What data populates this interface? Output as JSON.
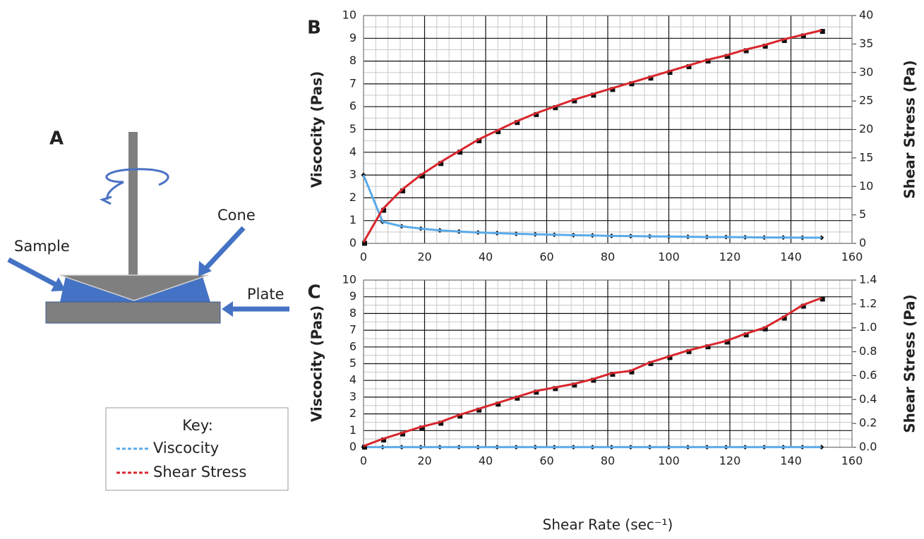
{
  "diagram": {
    "label": "A",
    "cone": "Cone",
    "sample": "Sample",
    "plate": "Plate"
  },
  "key": {
    "title": "Key:"
  },
  "chart_data": [
    {
      "type": "line",
      "label": "B",
      "ylabel": "Viscocity (Pas)",
      "y2label": "Shear Stress (Pa)",
      "x": [
        0,
        6.25,
        12.5,
        18.75,
        25,
        31.25,
        37.5,
        43.75,
        50,
        56.25,
        62.5,
        68.75,
        75,
        81.25,
        87.5,
        93.75,
        100,
        106.25,
        112.5,
        118.75,
        125,
        131.25,
        137.5,
        143.75,
        150
      ],
      "series": [
        {
          "name": "Viscocity",
          "color": "#5aaae8",
          "axis": "y",
          "values": [
            3.0,
            0.95,
            0.75,
            0.65,
            0.57,
            0.52,
            0.48,
            0.45,
            0.42,
            0.4,
            0.38,
            0.36,
            0.35,
            0.33,
            0.32,
            0.31,
            0.3,
            0.29,
            0.28,
            0.28,
            0.27,
            0.26,
            0.26,
            0.25,
            0.25
          ]
        },
        {
          "name": "Shear Stress",
          "color": "#d9262c",
          "axis": "y2",
          "values": [
            0.2,
            6,
            9.4,
            12,
            14.2,
            16.2,
            18.2,
            19.8,
            21.4,
            22.8,
            24,
            25.2,
            26.2,
            27.2,
            28.2,
            29.2,
            30.2,
            31.2,
            32.2,
            33,
            34,
            34.8,
            35.8,
            36.6,
            37.4
          ]
        }
      ],
      "marker_color": "#111111",
      "xlim": [
        0,
        160
      ],
      "xticks": [
        0,
        20,
        40,
        60,
        80,
        100,
        120,
        140,
        160
      ],
      "ylim": [
        0,
        10
      ],
      "yticks": [
        0,
        1,
        2,
        3,
        4,
        5,
        6,
        7,
        8,
        9,
        10
      ],
      "y2lim": [
        0,
        40
      ],
      "y2ticks": [
        0,
        5,
        10,
        15,
        20,
        25,
        30,
        35,
        40
      ],
      "grid": true,
      "minor_grid": true
    },
    {
      "type": "line",
      "label": "C",
      "ylabel": "Viscocity (Pas)",
      "y2label": "Shear Stress (Pa)",
      "xlabel": "Shear Rate (sec⁻¹)",
      "x": [
        0,
        6.25,
        12.5,
        18.75,
        25,
        31.25,
        37.5,
        43.75,
        50,
        56.25,
        62.5,
        68.75,
        75,
        81.25,
        87.5,
        93.75,
        100,
        106.25,
        112.5,
        118.75,
        125,
        131.25,
        137.5,
        143.75,
        150
      ],
      "series": [
        {
          "color": "#5aaae8",
          "axis": "y",
          "values": [
            0.01,
            0.01,
            0.01,
            0.01,
            0.01,
            0.01,
            0.01,
            0.01,
            0.01,
            0.01,
            0.01,
            0.01,
            0.01,
            0.01,
            0.01,
            0.01,
            0.01,
            0.01,
            0.01,
            0.01,
            0.01,
            0.01,
            0.01,
            0.01,
            0.01
          ]
        },
        {
          "color": "#d9262c",
          "axis": "y2",
          "values": [
            0.01,
            0.07,
            0.12,
            0.17,
            0.21,
            0.27,
            0.32,
            0.37,
            0.42,
            0.47,
            0.5,
            0.53,
            0.57,
            0.62,
            0.64,
            0.71,
            0.76,
            0.81,
            0.85,
            0.89,
            0.95,
            1.0,
            1.09,
            1.19,
            1.25
          ]
        }
      ],
      "marker_color": "#111111",
      "xlim": [
        0,
        160
      ],
      "xticks": [
        0,
        20,
        40,
        60,
        80,
        100,
        120,
        140,
        160
      ],
      "ylim": [
        0,
        10
      ],
      "yticks": [
        0,
        1,
        2,
        3,
        4,
        5,
        6,
        7,
        8,
        9,
        10
      ],
      "y2lim": [
        0,
        1.4
      ],
      "y2ticks": [
        {
          "value": 0,
          "label": "0.0"
        },
        0.2,
        0.4,
        0.6,
        0.8,
        {
          "value": 1,
          "label": "1.0"
        },
        1.2,
        1.4
      ],
      "grid": true,
      "minor_grid": true
    }
  ]
}
